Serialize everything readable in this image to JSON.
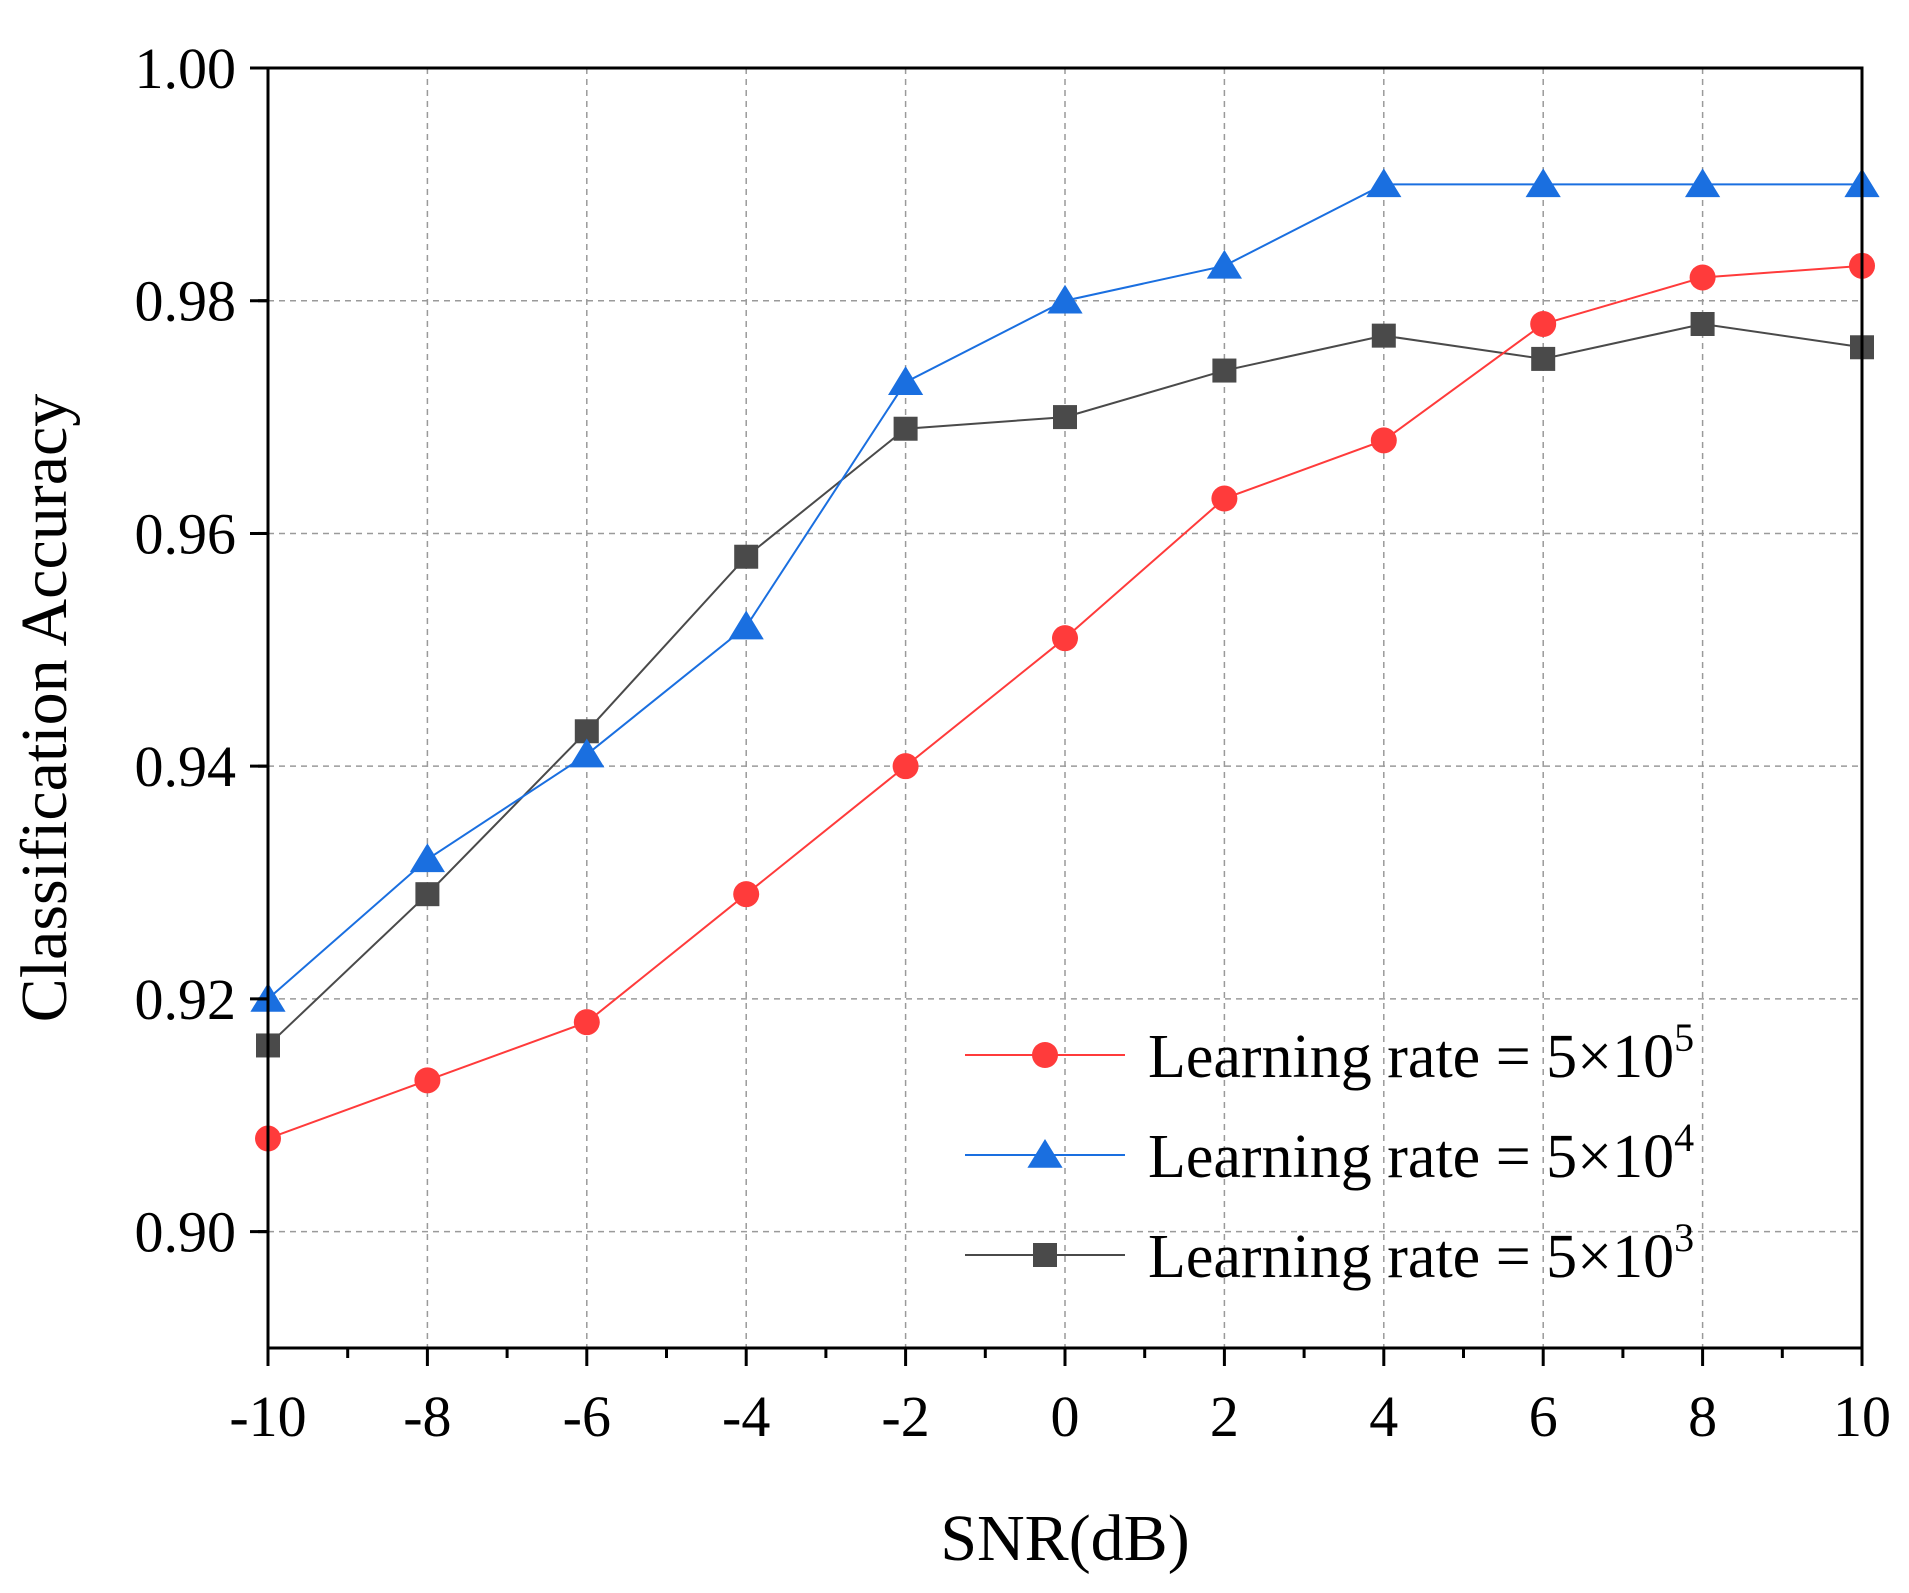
{
  "chart_data": {
    "type": "line",
    "xlabel": "SNR(dB)",
    "ylabel": "Classification Accuracy",
    "xlim": [
      -10,
      10
    ],
    "ylim": [
      0.89,
      1.0
    ],
    "x": [
      -10,
      -8,
      -6,
      -4,
      -2,
      0,
      2,
      4,
      6,
      8,
      10
    ],
    "xticks": [
      "-10",
      "-8",
      "-6",
      "-4",
      "-2",
      "0",
      "2",
      "4",
      "6",
      "8",
      "10"
    ],
    "yticks": [
      "0.90",
      "0.92",
      "0.94",
      "0.96",
      "0.98",
      "1.00"
    ],
    "ytick_values": [
      0.9,
      0.92,
      0.94,
      0.96,
      0.98,
      1.0
    ],
    "grid": true,
    "legend_position": "bottom-right",
    "series": [
      {
        "name": "Learning rate = 5×10",
        "exponent": "5",
        "color": "#ff3b3b",
        "marker": "circle",
        "values": [
          0.908,
          0.913,
          0.918,
          0.929,
          0.94,
          0.951,
          0.963,
          0.968,
          0.978,
          0.982,
          0.983
        ]
      },
      {
        "name": "Learning rate = 5×10",
        "exponent": "4",
        "color": "#1a6fe0",
        "marker": "triangle",
        "values": [
          0.92,
          0.932,
          0.941,
          0.952,
          0.973,
          0.98,
          0.983,
          0.99,
          0.99,
          0.99,
          0.99
        ]
      },
      {
        "name": "Learning rate = 5×10",
        "exponent": "3",
        "color": "#4a4a4a",
        "marker": "square",
        "values": [
          0.916,
          0.929,
          0.943,
          0.958,
          0.969,
          0.97,
          0.974,
          0.977,
          0.975,
          0.978,
          0.976
        ]
      }
    ]
  }
}
